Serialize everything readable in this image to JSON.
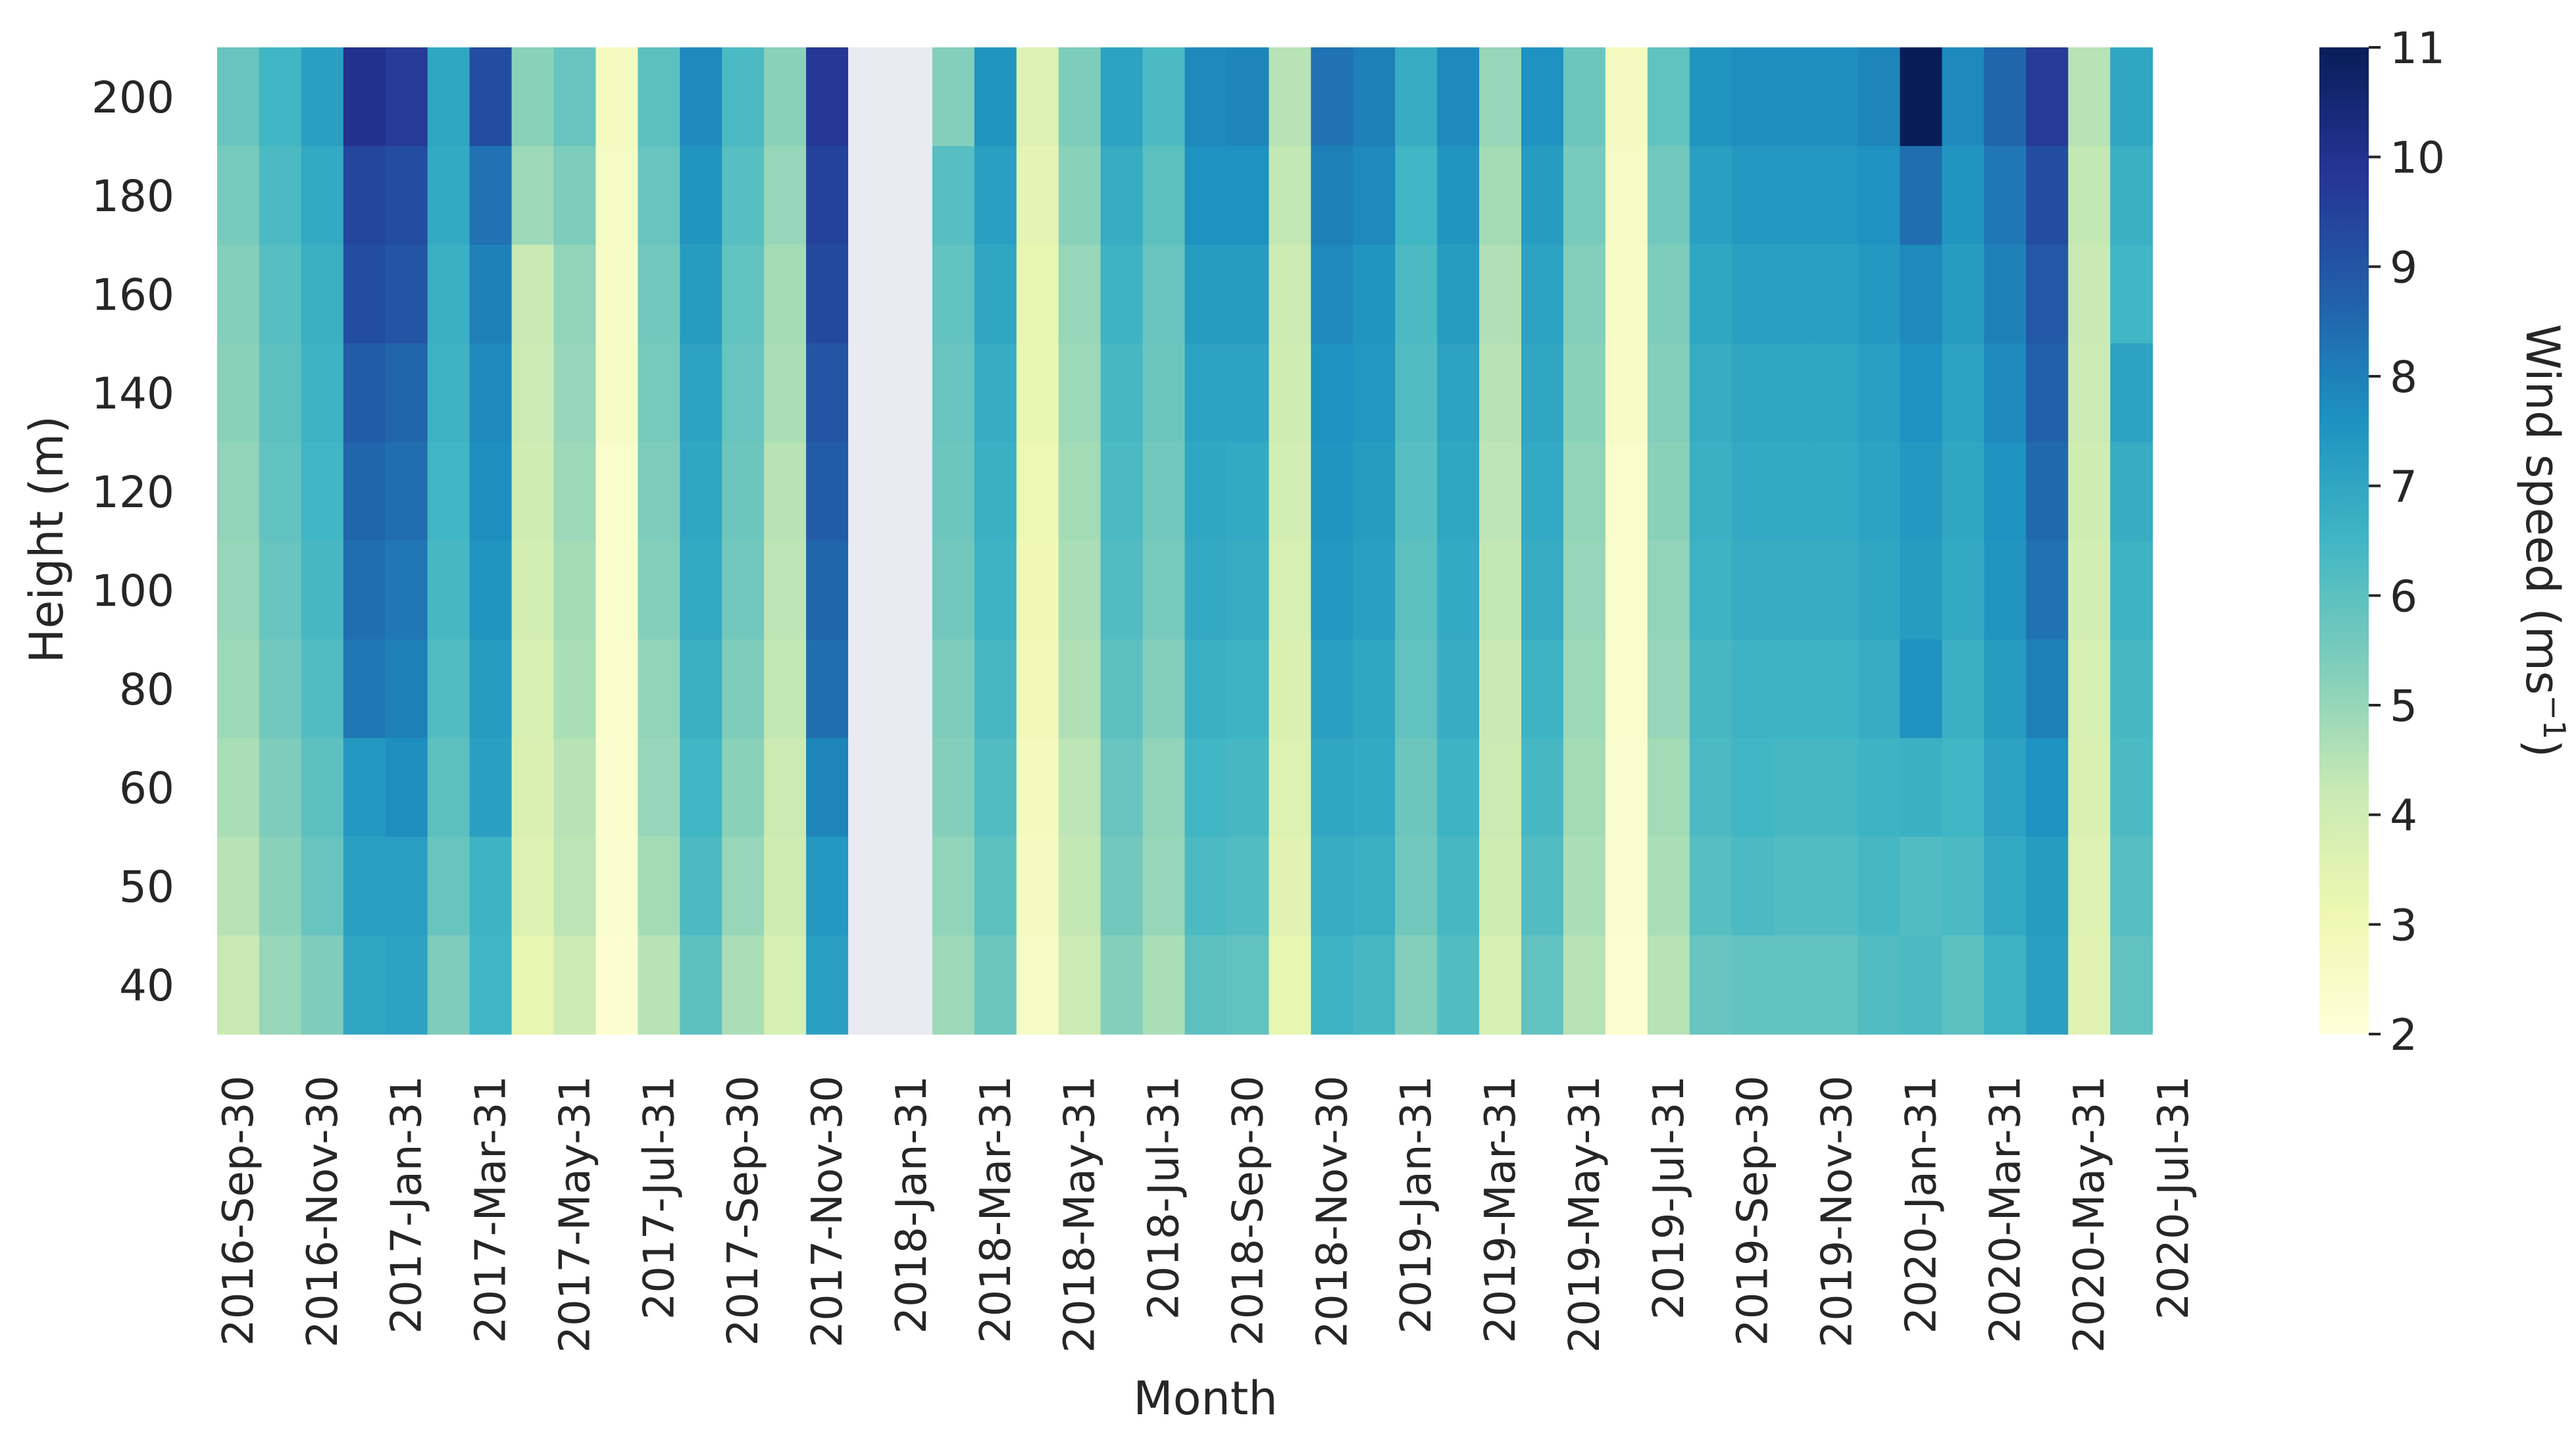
{
  "chart_data": {
    "type": "heatmap",
    "title": "",
    "xlabel": "Month",
    "ylabel": "Height (m)",
    "colorbar": {
      "label_main": "Wind speed (ms",
      "label_exp": "−1",
      "label_close": ")",
      "min": 2,
      "max": 11,
      "ticks": [
        "2",
        "3",
        "4",
        "5",
        "6",
        "7",
        "8",
        "9",
        "10",
        "11"
      ],
      "colormap": "YlGnBu"
    },
    "months": [
      "2016-Sep-30",
      "2016-Oct-31",
      "2016-Nov-30",
      "2016-Dec-31",
      "2017-Jan-31",
      "2017-Feb-28",
      "2017-Mar-31",
      "2017-Apr-30",
      "2017-May-31",
      "2017-Jun-30",
      "2017-Jul-31",
      "2017-Aug-31",
      "2017-Sep-30",
      "2017-Oct-31",
      "2017-Nov-30",
      "2017-Dec-31",
      "2018-Jan-31",
      "2018-Feb-28",
      "2018-Mar-31",
      "2018-Apr-30",
      "2018-May-31",
      "2018-Jun-30",
      "2018-Jul-31",
      "2018-Aug-31",
      "2018-Sep-30",
      "2018-Oct-31",
      "2018-Nov-30",
      "2018-Dec-31",
      "2019-Jan-31",
      "2019-Feb-28",
      "2019-Mar-31",
      "2019-Apr-30",
      "2019-May-31",
      "2019-Jun-30",
      "2019-Jul-31",
      "2019-Aug-31",
      "2019-Sep-30",
      "2019-Oct-31",
      "2019-Nov-30",
      "2019-Dec-31",
      "2020-Jan-31",
      "2020-Feb-29",
      "2020-Mar-31",
      "2020-Apr-30",
      "2020-May-31",
      "2020-Jun-30",
      "2020-Jul-31"
    ],
    "x_tick_labels": [
      "2016-Sep-30",
      "2016-Nov-30",
      "2017-Jan-31",
      "2017-Mar-31",
      "2017-May-31",
      "2017-Jul-31",
      "2017-Sep-30",
      "2017-Nov-30",
      "2018-Jan-31",
      "2018-Mar-31",
      "2018-May-31",
      "2018-Jul-31",
      "2018-Sep-30",
      "2018-Nov-30",
      "2019-Jan-31",
      "2019-Mar-31",
      "2019-May-31",
      "2019-Jul-31",
      "2019-Sep-30",
      "2019-Nov-30",
      "2020-Jan-31",
      "2020-Mar-31",
      "2020-May-31",
      "2020-Jul-31"
    ],
    "heights": [
      "200",
      "180",
      "160",
      "140",
      "120",
      "100",
      "80",
      "60",
      "50",
      "40"
    ],
    "missing_color": "#eaeaf2",
    "values": [
      [
        5.8,
        6.5,
        7.2,
        10.0,
        9.7,
        7.0,
        9.2,
        5.2,
        5.8,
        2.7,
        6.0,
        7.8,
        6.3,
        5.2,
        9.8,
        null,
        null,
        5.3,
        7.5,
        3.6,
        5.4,
        7.1,
        6.3,
        7.8,
        7.9,
        4.5,
        8.3,
        8.0,
        6.8,
        7.8,
        5.0,
        7.6,
        5.7,
        2.7,
        5.9,
        7.5,
        7.7,
        7.7,
        7.7,
        7.9,
        11.0,
        7.8,
        8.6,
        9.7,
        4.5,
        7.0
      ],
      [
        5.5,
        6.3,
        6.9,
        9.4,
        9.2,
        6.9,
        8.3,
        4.9,
        5.4,
        2.6,
        5.8,
        7.5,
        6.1,
        5.0,
        9.5,
        null,
        null,
        6.1,
        7.2,
        3.4,
        5.2,
        6.8,
        6.0,
        7.6,
        7.6,
        4.3,
        8.0,
        7.8,
        6.5,
        7.5,
        4.8,
        7.3,
        5.5,
        2.6,
        5.6,
        7.2,
        7.4,
        7.4,
        7.4,
        7.6,
        8.4,
        7.5,
        8.2,
        9.2,
        4.3,
        6.7
      ],
      [
        5.3,
        6.1,
        6.7,
        9.2,
        9.0,
        6.7,
        8.0,
        4.2,
        5.1,
        2.5,
        5.6,
        7.3,
        5.9,
        4.8,
        9.3,
        null,
        null,
        5.9,
        7.0,
        3.3,
        5.0,
        6.6,
        5.8,
        7.3,
        7.3,
        4.1,
        7.8,
        7.5,
        6.3,
        7.3,
        4.6,
        7.1,
        5.3,
        2.5,
        5.4,
        7.0,
        7.2,
        7.2,
        7.2,
        7.4,
        7.8,
        7.3,
        8.0,
        8.9,
        4.2,
        6.5
      ],
      [
        5.2,
        6.0,
        6.6,
        8.8,
        8.6,
        6.6,
        7.8,
        4.1,
        5.0,
        2.5,
        5.5,
        7.1,
        5.8,
        4.7,
        9.0,
        null,
        null,
        5.8,
        6.8,
        3.2,
        4.9,
        6.4,
        5.7,
        7.1,
        7.1,
        4.0,
        7.6,
        7.4,
        6.2,
        7.1,
        4.5,
        7.0,
        5.2,
        2.5,
        5.3,
        6.8,
        7.0,
        7.0,
        7.0,
        7.2,
        7.6,
        7.1,
        7.8,
        8.7,
        4.1,
        7.1
      ],
      [
        5.1,
        5.9,
        6.5,
        8.6,
        8.4,
        6.5,
        7.7,
        4.0,
        4.9,
        2.4,
        5.4,
        7.0,
        5.7,
        4.5,
        8.8,
        null,
        null,
        5.7,
        6.7,
        3.1,
        4.8,
        6.3,
        5.6,
        7.0,
        6.9,
        3.9,
        7.5,
        7.3,
        6.1,
        7.0,
        4.4,
        6.9,
        5.1,
        2.4,
        5.2,
        6.7,
        6.9,
        6.9,
        6.9,
        7.1,
        7.4,
        7.0,
        7.6,
        8.5,
        4.0,
        6.8
      ],
      [
        5.0,
        5.8,
        6.4,
        8.4,
        8.2,
        6.4,
        7.5,
        3.9,
        4.8,
        2.4,
        5.3,
        6.9,
        5.6,
        4.4,
        8.6,
        null,
        null,
        5.6,
        6.6,
        3.0,
        4.7,
        6.2,
        5.5,
        6.9,
        6.8,
        3.8,
        7.4,
        7.2,
        6.0,
        6.9,
        4.3,
        6.8,
        5.0,
        2.4,
        5.1,
        6.6,
        6.8,
        6.8,
        6.8,
        7.0,
        7.3,
        6.9,
        7.5,
        8.3,
        3.9,
        6.6
      ],
      [
        4.9,
        5.6,
        6.2,
        8.2,
        8.0,
        6.2,
        7.3,
        3.8,
        4.7,
        2.4,
        5.1,
        6.7,
        5.4,
        4.3,
        8.4,
        null,
        null,
        5.4,
        6.4,
        2.9,
        4.6,
        6.0,
        5.3,
        6.7,
        6.6,
        3.7,
        7.2,
        7.0,
        5.9,
        6.8,
        4.2,
        6.6,
        4.9,
        2.4,
        5.0,
        6.4,
        6.6,
        6.6,
        6.6,
        6.8,
        7.6,
        6.7,
        7.3,
        8.0,
        3.8,
        6.4
      ],
      [
        4.7,
        5.4,
        6.0,
        7.4,
        7.7,
        6.0,
        7.2,
        3.7,
        4.5,
        2.3,
        5.0,
        6.5,
        5.2,
        4.1,
        7.9,
        null,
        null,
        5.3,
        6.2,
        2.8,
        4.4,
        5.8,
        5.1,
        6.5,
        6.4,
        3.6,
        7.0,
        6.9,
        5.7,
        6.6,
        4.1,
        6.4,
        4.8,
        2.3,
        4.8,
        6.3,
        6.5,
        6.4,
        6.4,
        6.6,
        6.7,
        6.5,
        7.1,
        7.6,
        3.7,
        6.3
      ],
      [
        4.5,
        5.2,
        5.8,
        7.2,
        7.2,
        5.8,
        6.6,
        3.6,
        4.4,
        2.3,
        4.8,
        6.3,
        5.0,
        4.0,
        7.4,
        null,
        null,
        5.1,
        6.0,
        2.7,
        4.3,
        5.6,
        5.0,
        6.3,
        6.2,
        3.5,
        6.8,
        6.7,
        5.6,
        6.4,
        4.0,
        6.2,
        4.7,
        2.3,
        4.7,
        6.1,
        6.3,
        6.2,
        6.2,
        6.4,
        6.2,
        6.3,
        6.9,
        7.3,
        3.6,
        6.1
      ],
      [
        4.2,
        5.0,
        5.4,
        7.0,
        7.1,
        5.4,
        6.5,
        3.3,
        4.1,
        2.2,
        4.5,
        6.0,
        4.7,
        3.8,
        7.2,
        null,
        null,
        4.9,
        5.7,
        2.6,
        4.1,
        5.3,
        4.7,
        6.0,
        5.9,
        3.3,
        6.6,
        6.4,
        5.3,
        6.2,
        3.8,
        5.9,
        4.5,
        2.2,
        4.5,
        5.8,
        5.9,
        5.9,
        5.9,
        6.2,
        6.3,
        6.0,
        6.6,
        7.2,
        3.5,
        5.9
      ]
    ]
  }
}
